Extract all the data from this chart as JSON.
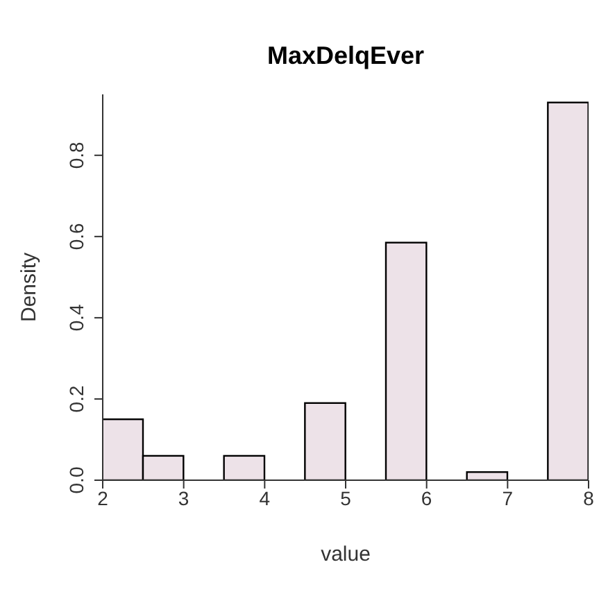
{
  "chart_data": {
    "type": "histogram",
    "title": "MaxDelqEver",
    "xlabel": "value",
    "ylabel": "Density",
    "bins": [
      2,
      2.5,
      3,
      3.5,
      4,
      4.5,
      5,
      5.5,
      6,
      6.5,
      7,
      7.5,
      8
    ],
    "values": [
      0.15,
      0.06,
      0,
      0.06,
      0,
      0.19,
      0,
      0.585,
      0,
      0.02,
      0,
      0.93
    ],
    "color": "#ede2e8",
    "xlim": [
      2,
      8
    ],
    "xticks": [
      2,
      3,
      4,
      5,
      6,
      7,
      8
    ],
    "ylim": [
      0,
      0.95
    ],
    "yticks": [
      {
        "value": 0,
        "label": "0.0"
      },
      0.2,
      0.4,
      0.6,
      0.8
    ],
    "grid": false,
    "legend": false
  }
}
